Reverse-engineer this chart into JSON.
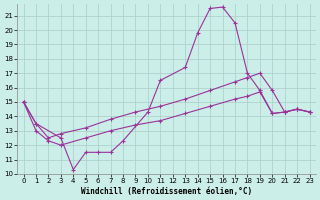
{
  "xlabel": "Windchill (Refroidissement éolien,°C)",
  "background_color": "#cceee8",
  "grid_color": "#aaccc8",
  "line_color": "#993399",
  "xlim": [
    -0.5,
    23.5
  ],
  "ylim": [
    10,
    21.8
  ],
  "yticks": [
    10,
    11,
    12,
    13,
    14,
    15,
    16,
    17,
    18,
    19,
    20,
    21
  ],
  "xticks": [
    0,
    1,
    2,
    3,
    4,
    5,
    6,
    7,
    8,
    9,
    10,
    11,
    12,
    13,
    14,
    15,
    16,
    17,
    18,
    19,
    20,
    21,
    22,
    23
  ],
  "line1_x": [
    0,
    1,
    3,
    4,
    5,
    6,
    7,
    8,
    10,
    11,
    13,
    14,
    15,
    16,
    17,
    18,
    19,
    20,
    21,
    22,
    23
  ],
  "line1_y": [
    15.0,
    13.5,
    12.5,
    10.3,
    11.5,
    11.5,
    11.5,
    12.3,
    14.3,
    16.5,
    17.4,
    19.8,
    21.5,
    21.6,
    20.5,
    17.0,
    15.8,
    14.2,
    14.3,
    14.5,
    14.3
  ],
  "line2_x": [
    0,
    1,
    2,
    3,
    5,
    7,
    9,
    11,
    13,
    15,
    17,
    18,
    19,
    20,
    21,
    22,
    23
  ],
  "line2_y": [
    15.0,
    13.5,
    12.5,
    12.8,
    13.2,
    13.8,
    14.3,
    14.7,
    15.2,
    15.8,
    16.4,
    16.7,
    17.0,
    15.8,
    14.3,
    14.5,
    14.3
  ],
  "line3_x": [
    0,
    1,
    2,
    3,
    5,
    7,
    9,
    11,
    13,
    15,
    17,
    18,
    19,
    20,
    21,
    22,
    23
  ],
  "line3_y": [
    15.0,
    13.0,
    12.3,
    12.0,
    12.5,
    13.0,
    13.4,
    13.7,
    14.2,
    14.7,
    15.2,
    15.4,
    15.7,
    14.2,
    14.3,
    14.5,
    14.3
  ],
  "marker_size": 2.0,
  "line_width": 0.8,
  "font_size": 5.5,
  "tick_font_size": 5.0
}
